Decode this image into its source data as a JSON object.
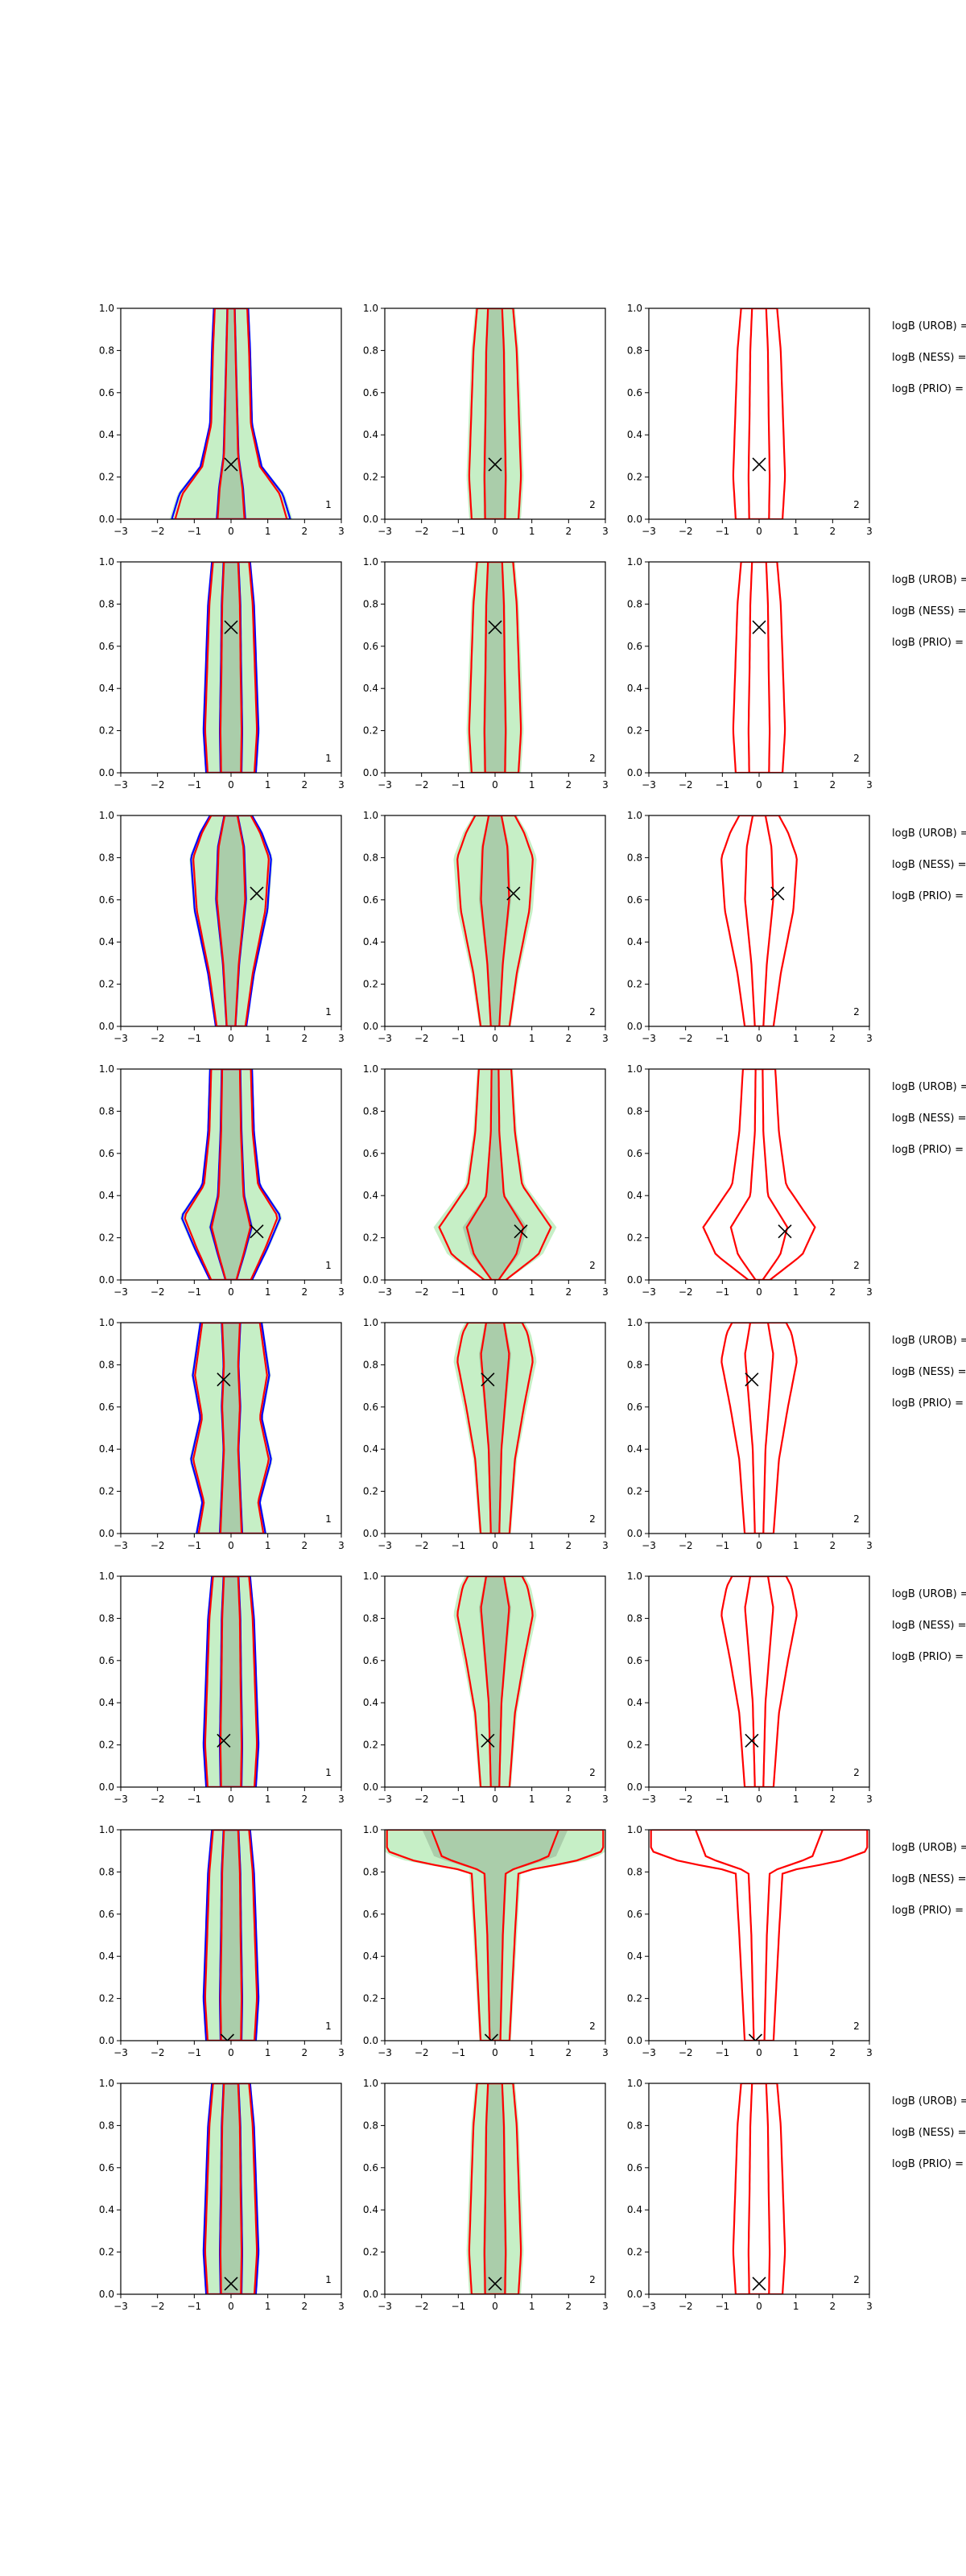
{
  "figure": {
    "right_labels": [
      "logB (UROB) =",
      "logB (NESS) =",
      "logB (PRIO) ="
    ]
  },
  "colors": {
    "urob": "#0000ff",
    "ness": "#ff0000",
    "fill_light": "#c6efc6",
    "fill_dark": "#aacdaa",
    "fill_mid": "#b6dcb6",
    "marker": "#000000",
    "frame": "#000000"
  },
  "chart_data": [
    {
      "type": "contour",
      "row": 1,
      "panels": [
        {
          "column": 1,
          "x_range": [
            -3,
            3
          ],
          "y_range": [
            0,
            1
          ],
          "x_ticks": [
            "−3",
            "−2",
            "−1",
            "0",
            "1",
            "2",
            "3"
          ],
          "y_ticks": [
            "0.0",
            "0.2",
            "0.4",
            "0.6",
            "0.8",
            "1.0"
          ],
          "corner_label": "1",
          "marker": {
            "x": 0.0,
            "y": 0.26
          },
          "outlines": [
            "blue",
            "red"
          ],
          "filled": true,
          "profile": "w_narrow_base"
        },
        {
          "column": 2,
          "x_range": [
            -3,
            3
          ],
          "y_range": [
            0,
            1
          ],
          "x_ticks": [
            "−3",
            "−2",
            "−1",
            "0",
            "1",
            "2",
            "3"
          ],
          "y_ticks": [
            "0.0",
            "0.2",
            "0.4",
            "0.6",
            "0.8",
            "1.0"
          ],
          "corner_label": "2",
          "marker": {
            "x": 0.0,
            "y": 0.26
          },
          "outlines": [
            "red"
          ],
          "filled": true,
          "profile": "straight"
        },
        {
          "column": 3,
          "x_range": [
            -3,
            3
          ],
          "y_range": [
            0,
            1
          ],
          "x_ticks": [
            "−3",
            "−2",
            "−1",
            "0",
            "1",
            "2",
            "3"
          ],
          "y_ticks": [
            "0.0",
            "0.2",
            "0.4",
            "0.6",
            "0.8",
            "1.0"
          ],
          "corner_label": "2",
          "marker": {
            "x": 0.0,
            "y": 0.26
          },
          "outlines": [
            "red"
          ],
          "filled": false,
          "profile": "straight"
        }
      ]
    },
    {
      "type": "contour",
      "row": 2,
      "panels": [
        {
          "column": 1,
          "x_range": [
            -3,
            3
          ],
          "y_range": [
            0,
            1
          ],
          "x_ticks": [
            "−3",
            "−2",
            "−1",
            "0",
            "1",
            "2",
            "3"
          ],
          "y_ticks": [
            "0.0",
            "0.2",
            "0.4",
            "0.6",
            "0.8",
            "1.0"
          ],
          "corner_label": "1",
          "marker": {
            "x": 0.0,
            "y": 0.69
          },
          "outlines": [
            "blue",
            "red"
          ],
          "filled": true,
          "profile": "straight"
        },
        {
          "column": 2,
          "x_range": [
            -3,
            3
          ],
          "y_range": [
            0,
            1
          ],
          "x_ticks": [
            "−3",
            "−2",
            "−1",
            "0",
            "1",
            "2",
            "3"
          ],
          "y_ticks": [
            "0.0",
            "0.2",
            "0.4",
            "0.6",
            "0.8",
            "1.0"
          ],
          "corner_label": "2",
          "marker": {
            "x": 0.0,
            "y": 0.69
          },
          "outlines": [
            "red"
          ],
          "filled": true,
          "profile": "straight"
        },
        {
          "column": 3,
          "x_range": [
            -3,
            3
          ],
          "y_range": [
            0,
            1
          ],
          "x_ticks": [
            "−3",
            "−2",
            "−1",
            "0",
            "1",
            "2",
            "3"
          ],
          "y_ticks": [
            "0.0",
            "0.2",
            "0.4",
            "0.6",
            "0.8",
            "1.0"
          ],
          "corner_label": "2",
          "marker": {
            "x": 0.0,
            "y": 0.69
          },
          "outlines": [
            "red"
          ],
          "filled": false,
          "profile": "straight"
        }
      ]
    },
    {
      "type": "contour",
      "row": 3,
      "panels": [
        {
          "column": 1,
          "x_range": [
            -3,
            3
          ],
          "y_range": [
            0,
            1
          ],
          "x_ticks": [
            "−3",
            "−2",
            "−1",
            "0",
            "1",
            "2",
            "3"
          ],
          "y_ticks": [
            "0.0",
            "0.2",
            "0.4",
            "0.6",
            "0.8",
            "1.0"
          ],
          "corner_label": "1",
          "marker": {
            "x": 0.7,
            "y": 0.63
          },
          "outlines": [
            "blue",
            "red"
          ],
          "filled": true,
          "profile": "vase"
        },
        {
          "column": 2,
          "x_range": [
            -3,
            3
          ],
          "y_range": [
            0,
            1
          ],
          "x_ticks": [
            "−3",
            "−2",
            "−1",
            "0",
            "1",
            "2",
            "3"
          ],
          "y_ticks": [
            "0.0",
            "0.2",
            "0.4",
            "0.6",
            "0.8",
            "1.0"
          ],
          "corner_label": "2",
          "marker": {
            "x": 0.5,
            "y": 0.63
          },
          "outlines": [
            "red"
          ],
          "filled": true,
          "profile": "vase"
        },
        {
          "column": 3,
          "x_range": [
            -3,
            3
          ],
          "y_range": [
            0,
            1
          ],
          "x_ticks": [
            "−3",
            "−2",
            "−1",
            "0",
            "1",
            "2",
            "3"
          ],
          "y_ticks": [
            "0.0",
            "0.2",
            "0.4",
            "0.6",
            "0.8",
            "1.0"
          ],
          "corner_label": "2",
          "marker": {
            "x": 0.5,
            "y": 0.63
          },
          "outlines": [
            "red"
          ],
          "filled": false,
          "profile": "vase"
        }
      ]
    },
    {
      "type": "contour",
      "row": 4,
      "panels": [
        {
          "column": 1,
          "x_range": [
            -3,
            3
          ],
          "y_range": [
            0,
            1
          ],
          "x_ticks": [
            "−3",
            "−2",
            "−1",
            "0",
            "1",
            "2",
            "3"
          ],
          "y_ticks": [
            "0.0",
            "0.2",
            "0.4",
            "0.6",
            "0.8",
            "1.0"
          ],
          "corner_label": "1",
          "marker": {
            "x": 0.7,
            "y": 0.23
          },
          "outlines": [
            "blue",
            "red"
          ],
          "filled": true,
          "profile": "flare_low"
        },
        {
          "column": 2,
          "x_range": [
            -3,
            3
          ],
          "y_range": [
            0,
            1
          ],
          "x_ticks": [
            "−3",
            "−2",
            "−1",
            "0",
            "1",
            "2",
            "3"
          ],
          "y_ticks": [
            "0.0",
            "0.2",
            "0.4",
            "0.6",
            "0.8",
            "1.0"
          ],
          "corner_label": "2",
          "marker": {
            "x": 0.7,
            "y": 0.23
          },
          "outlines": [
            "red"
          ],
          "filled": true,
          "profile": "flare_wide"
        },
        {
          "column": 3,
          "x_range": [
            -3,
            3
          ],
          "y_range": [
            0,
            1
          ],
          "x_ticks": [
            "−3",
            "−2",
            "−1",
            "0",
            "1",
            "2",
            "3"
          ],
          "y_ticks": [
            "0.0",
            "0.2",
            "0.4",
            "0.6",
            "0.8",
            "1.0"
          ],
          "corner_label": "2",
          "marker": {
            "x": 0.7,
            "y": 0.23
          },
          "outlines": [
            "red"
          ],
          "filled": false,
          "profile": "flare_wide"
        }
      ]
    },
    {
      "type": "contour",
      "row": 5,
      "panels": [
        {
          "column": 1,
          "x_range": [
            -3,
            3
          ],
          "y_range": [
            0,
            1
          ],
          "x_ticks": [
            "−3",
            "−2",
            "−1",
            "0",
            "1",
            "2",
            "3"
          ],
          "y_ticks": [
            "0.0",
            "0.2",
            "0.4",
            "0.6",
            "0.8",
            "1.0"
          ],
          "corner_label": "1",
          "marker": {
            "x": -0.2,
            "y": 0.73
          },
          "outlines": [
            "blue",
            "red"
          ],
          "filled": true,
          "profile": "wavy"
        },
        {
          "column": 2,
          "x_range": [
            -3,
            3
          ],
          "y_range": [
            0,
            1
          ],
          "x_ticks": [
            "−3",
            "−2",
            "−1",
            "0",
            "1",
            "2",
            "3"
          ],
          "y_ticks": [
            "0.0",
            "0.2",
            "0.4",
            "0.6",
            "0.8",
            "1.0"
          ],
          "corner_label": "2",
          "marker": {
            "x": -0.2,
            "y": 0.73
          },
          "outlines": [
            "red"
          ],
          "filled": true,
          "profile": "top_bulb"
        },
        {
          "column": 3,
          "x_range": [
            -3,
            3
          ],
          "y_range": [
            0,
            1
          ],
          "x_ticks": [
            "−3",
            "−2",
            "−1",
            "0",
            "1",
            "2",
            "3"
          ],
          "y_ticks": [
            "0.0",
            "0.2",
            "0.4",
            "0.6",
            "0.8",
            "1.0"
          ],
          "corner_label": "2",
          "marker": {
            "x": -0.2,
            "y": 0.73
          },
          "outlines": [
            "red"
          ],
          "filled": false,
          "profile": "top_bulb"
        }
      ]
    },
    {
      "type": "contour",
      "row": 6,
      "panels": [
        {
          "column": 1,
          "x_range": [
            -3,
            3
          ],
          "y_range": [
            0,
            1
          ],
          "x_ticks": [
            "−3",
            "−2",
            "−1",
            "0",
            "1",
            "2",
            "3"
          ],
          "y_ticks": [
            "0.0",
            "0.2",
            "0.4",
            "0.6",
            "0.8",
            "1.0"
          ],
          "corner_label": "1",
          "marker": {
            "x": -0.2,
            "y": 0.22
          },
          "outlines": [
            "blue",
            "red"
          ],
          "filled": true,
          "profile": "straight"
        },
        {
          "column": 2,
          "x_range": [
            -3,
            3
          ],
          "y_range": [
            0,
            1
          ],
          "x_ticks": [
            "−3",
            "−2",
            "−1",
            "0",
            "1",
            "2",
            "3"
          ],
          "y_ticks": [
            "0.0",
            "0.2",
            "0.4",
            "0.6",
            "0.8",
            "1.0"
          ],
          "corner_label": "2",
          "marker": {
            "x": -0.2,
            "y": 0.22
          },
          "outlines": [
            "red"
          ],
          "filled": true,
          "profile": "top_bulb"
        },
        {
          "column": 3,
          "x_range": [
            -3,
            3
          ],
          "y_range": [
            0,
            1
          ],
          "x_ticks": [
            "−3",
            "−2",
            "−1",
            "0",
            "1",
            "2",
            "3"
          ],
          "y_ticks": [
            "0.0",
            "0.2",
            "0.4",
            "0.6",
            "0.8",
            "1.0"
          ],
          "corner_label": "2",
          "marker": {
            "x": -0.2,
            "y": 0.22
          },
          "outlines": [
            "red"
          ],
          "filled": false,
          "profile": "top_bulb"
        }
      ]
    },
    {
      "type": "contour",
      "row": 7,
      "panels": [
        {
          "column": 1,
          "x_range": [
            -3,
            3
          ],
          "y_range": [
            0,
            1
          ],
          "x_ticks": [
            "−3",
            "−2",
            "−1",
            "0",
            "1",
            "2",
            "3"
          ],
          "y_ticks": [
            "0.0",
            "0.2",
            "0.4",
            "0.6",
            "0.8",
            "1.0"
          ],
          "corner_label": "1",
          "marker": {
            "x": -0.1,
            "y": 0.0
          },
          "outlines": [
            "blue",
            "red"
          ],
          "filled": true,
          "profile": "straight"
        },
        {
          "column": 2,
          "x_range": [
            -3,
            3
          ],
          "y_range": [
            0,
            1
          ],
          "x_ticks": [
            "−3",
            "−2",
            "−1",
            "0",
            "1",
            "2",
            "3"
          ],
          "y_ticks": [
            "0.0",
            "0.2",
            "0.4",
            "0.6",
            "0.8",
            "1.0"
          ],
          "corner_label": "2",
          "marker": {
            "x": -0.1,
            "y": 0.0
          },
          "outlines": [
            "red"
          ],
          "filled": true,
          "profile": "t_shape"
        },
        {
          "column": 3,
          "x_range": [
            -3,
            3
          ],
          "y_range": [
            0,
            1
          ],
          "x_ticks": [
            "−3",
            "−2",
            "−1",
            "0",
            "1",
            "2",
            "3"
          ],
          "y_ticks": [
            "0.0",
            "0.2",
            "0.4",
            "0.6",
            "0.8",
            "1.0"
          ],
          "corner_label": "2",
          "marker": {
            "x": -0.1,
            "y": 0.0
          },
          "outlines": [
            "red"
          ],
          "filled": false,
          "profile": "t_shape"
        }
      ]
    },
    {
      "type": "contour",
      "row": 8,
      "panels": [
        {
          "column": 1,
          "x_range": [
            -3,
            3
          ],
          "y_range": [
            0,
            1
          ],
          "x_ticks": [
            "−3",
            "−2",
            "−1",
            "0",
            "1",
            "2",
            "3"
          ],
          "y_ticks": [
            "0.0",
            "0.2",
            "0.4",
            "0.6",
            "0.8",
            "1.0"
          ],
          "corner_label": "1",
          "marker": {
            "x": 0.0,
            "y": 0.05
          },
          "outlines": [
            "blue",
            "red"
          ],
          "filled": true,
          "profile": "straight"
        },
        {
          "column": 2,
          "x_range": [
            -3,
            3
          ],
          "y_range": [
            0,
            1
          ],
          "x_ticks": [
            "−3",
            "−2",
            "−1",
            "0",
            "1",
            "2",
            "3"
          ],
          "y_ticks": [
            "0.0",
            "0.2",
            "0.4",
            "0.6",
            "0.8",
            "1.0"
          ],
          "corner_label": "2",
          "marker": {
            "x": 0.0,
            "y": 0.05
          },
          "outlines": [
            "red"
          ],
          "filled": true,
          "profile": "straight"
        },
        {
          "column": 3,
          "x_range": [
            -3,
            3
          ],
          "y_range": [
            0,
            1
          ],
          "x_ticks": [
            "−3",
            "−2",
            "−1",
            "0",
            "1",
            "2",
            "3"
          ],
          "y_ticks": [
            "0.0",
            "0.2",
            "0.4",
            "0.6",
            "0.8",
            "1.0"
          ],
          "corner_label": "2",
          "marker": {
            "x": 0.0,
            "y": 0.05
          },
          "outlines": [
            "red"
          ],
          "filled": false,
          "profile": "straight"
        }
      ]
    }
  ]
}
